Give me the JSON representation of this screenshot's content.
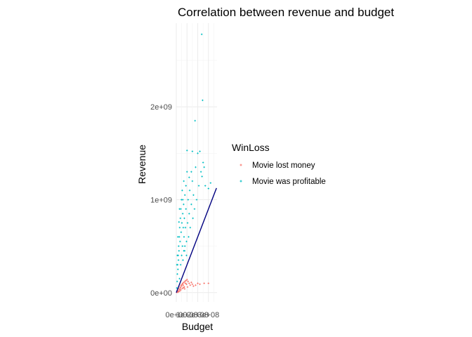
{
  "chart_data": {
    "type": "scatter",
    "title": "Correlation between revenue and budget",
    "xlabel": "Budget",
    "ylabel": "Revenue",
    "xlim": [
      0,
      380000000
    ],
    "ylim": [
      -100000000,
      2900000000
    ],
    "y_ticks": [
      0,
      1000000000,
      2000000000
    ],
    "y_tick_labels": [
      "0e+00",
      "1e+09",
      "2e+09"
    ],
    "x_ticks": [
      0,
      100000000,
      200000000,
      300000000
    ],
    "x_tick_labels": [
      "0e+00",
      "1e+08",
      "2e+08",
      "3e+08"
    ],
    "grid": true,
    "legend": {
      "title": "WinLoss",
      "placement": "right",
      "entries": [
        {
          "label": "Movie lost money",
          "color": "#F8766D"
        },
        {
          "label": "Movie was profitable",
          "color": "#00BFC4"
        }
      ]
    },
    "reference_line": {
      "slope": 3,
      "intercept": 0,
      "color": "#000080"
    },
    "series": [
      {
        "name": "Movie lost money",
        "color": "#F8766D",
        "points": [
          [
            5000000,
            2000000
          ],
          [
            10000000,
            8000000
          ],
          [
            12000000,
            15000000
          ],
          [
            20000000,
            20000000
          ],
          [
            25000000,
            40000000
          ],
          [
            30000000,
            35000000
          ],
          [
            35000000,
            60000000
          ],
          [
            40000000,
            50000000
          ],
          [
            45000000,
            80000000
          ],
          [
            50000000,
            70000000
          ],
          [
            55000000,
            90000000
          ],
          [
            60000000,
            100000000
          ],
          [
            65000000,
            80000000
          ],
          [
            70000000,
            110000000
          ],
          [
            75000000,
            60000000
          ],
          [
            80000000,
            120000000
          ],
          [
            85000000,
            100000000
          ],
          [
            90000000,
            130000000
          ],
          [
            95000000,
            90000000
          ],
          [
            100000000,
            140000000
          ],
          [
            105000000,
            60000000
          ],
          [
            110000000,
            120000000
          ],
          [
            120000000,
            100000000
          ],
          [
            130000000,
            80000000
          ],
          [
            140000000,
            110000000
          ],
          [
            150000000,
            90000000
          ],
          [
            160000000,
            70000000
          ],
          [
            180000000,
            80000000
          ],
          [
            200000000,
            100000000
          ],
          [
            220000000,
            90000000
          ],
          [
            260000000,
            100000000
          ],
          [
            300000000,
            100000000
          ],
          [
            15000000,
            5000000
          ],
          [
            22000000,
            12000000
          ],
          [
            33000000,
            18000000
          ],
          [
            42000000,
            30000000
          ],
          [
            58000000,
            45000000
          ],
          [
            68000000,
            55000000
          ],
          [
            78000000,
            40000000
          ]
        ]
      },
      {
        "name": "Movie was profitable",
        "color": "#00BFC4",
        "points": [
          [
            5000000,
            50000000
          ],
          [
            8000000,
            120000000
          ],
          [
            10000000,
            200000000
          ],
          [
            12000000,
            300000000
          ],
          [
            15000000,
            250000000
          ],
          [
            18000000,
            400000000
          ],
          [
            20000000,
            350000000
          ],
          [
            22000000,
            500000000
          ],
          [
            25000000,
            450000000
          ],
          [
            28000000,
            600000000
          ],
          [
            30000000,
            150000000
          ],
          [
            32000000,
            700000000
          ],
          [
            35000000,
            550000000
          ],
          [
            38000000,
            800000000
          ],
          [
            40000000,
            300000000
          ],
          [
            42000000,
            900000000
          ],
          [
            45000000,
            650000000
          ],
          [
            48000000,
            1000000000
          ],
          [
            50000000,
            400000000
          ],
          [
            52000000,
            750000000
          ],
          [
            55000000,
            1100000000
          ],
          [
            58000000,
            500000000
          ],
          [
            60000000,
            850000000
          ],
          [
            62000000,
            350000000
          ],
          [
            65000000,
            700000000
          ],
          [
            68000000,
            950000000
          ],
          [
            70000000,
            1200000000
          ],
          [
            72000000,
            600000000
          ],
          [
            75000000,
            800000000
          ],
          [
            78000000,
            450000000
          ],
          [
            80000000,
            1050000000
          ],
          [
            85000000,
            700000000
          ],
          [
            90000000,
            900000000
          ],
          [
            95000000,
            550000000
          ],
          [
            100000000,
            1300000000
          ],
          [
            105000000,
            750000000
          ],
          [
            110000000,
            1000000000
          ],
          [
            115000000,
            600000000
          ],
          [
            120000000,
            850000000
          ],
          [
            125000000,
            1100000000
          ],
          [
            130000000,
            700000000
          ],
          [
            140000000,
            950000000
          ],
          [
            150000000,
            1200000000
          ],
          [
            155000000,
            800000000
          ],
          [
            160000000,
            1050000000
          ],
          [
            170000000,
            900000000
          ],
          [
            180000000,
            1350000000
          ],
          [
            190000000,
            1000000000
          ],
          [
            200000000,
            1500000000
          ],
          [
            210000000,
            1150000000
          ],
          [
            220000000,
            1520000000
          ],
          [
            230000000,
            1300000000
          ],
          [
            240000000,
            1250000000
          ],
          [
            250000000,
            1400000000
          ],
          [
            260000000,
            1350000000
          ],
          [
            175000000,
            1850000000
          ],
          [
            245000000,
            2070000000
          ],
          [
            237000000,
            2780000000
          ],
          [
            100000000,
            1530000000
          ],
          [
            150000000,
            1520000000
          ],
          [
            270000000,
            1150000000
          ],
          [
            300000000,
            1120000000
          ],
          [
            320000000,
            1180000000
          ],
          [
            140000000,
            1300000000
          ],
          [
            120000000,
            1240000000
          ],
          [
            90000000,
            1150000000
          ],
          [
            60000000,
            1000000000
          ],
          [
            30000000,
            900000000
          ],
          [
            25000000,
            760000000
          ],
          [
            15000000,
            600000000
          ],
          [
            10000000,
            400000000
          ],
          [
            6000000,
            300000000
          ],
          [
            70000000,
            450000000
          ],
          [
            80000000,
            500000000
          ],
          [
            95000000,
            400000000
          ]
        ]
      }
    ]
  }
}
